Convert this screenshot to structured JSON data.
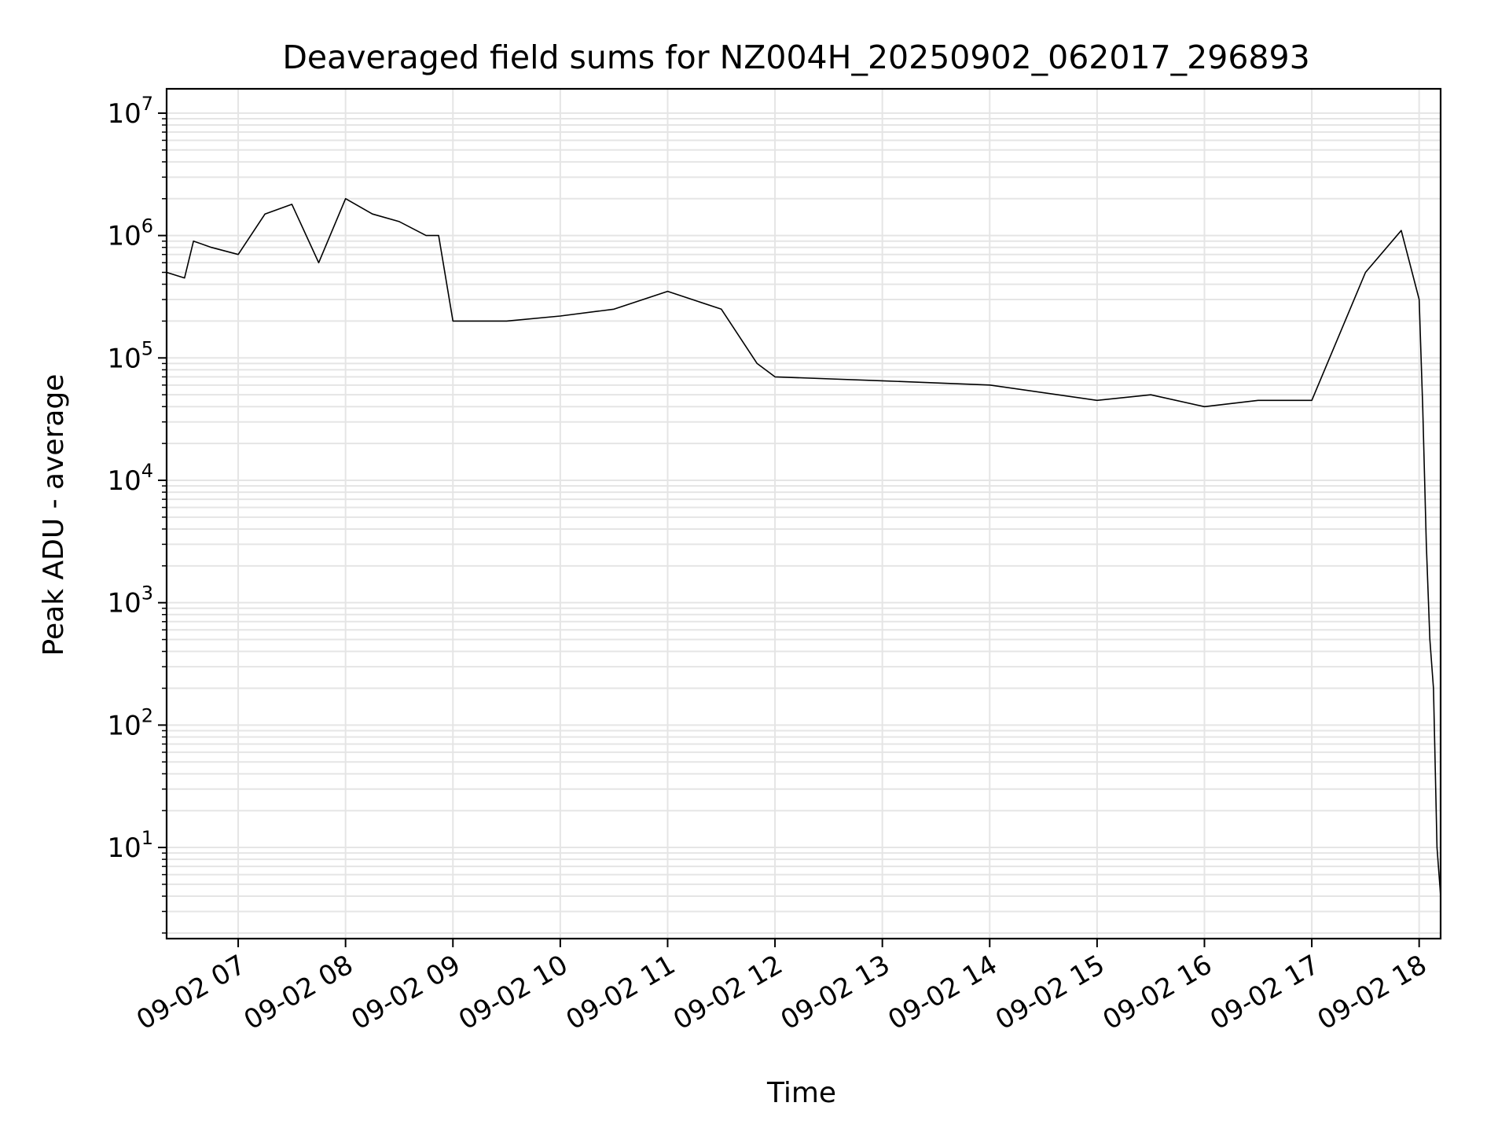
{
  "chart_data": {
    "type": "line",
    "title": "Deaveraged field sums for NZ004H_20250902_062017_296893",
    "xlabel": "Time",
    "ylabel": "Peak ADU - average",
    "yscale": "log",
    "xlim": [
      "2025-09-02 06:20",
      "2025-09-02 18:12"
    ],
    "ylim": [
      1.8,
      15800000
    ],
    "grid": true,
    "grid_minor": true,
    "line_color": "#000000",
    "grid_color": "#e5e5e5",
    "x_ticks": [
      {
        "value": "2025-09-02 07:00",
        "label": "09-02 07"
      },
      {
        "value": "2025-09-02 08:00",
        "label": "09-02 08"
      },
      {
        "value": "2025-09-02 09:00",
        "label": "09-02 09"
      },
      {
        "value": "2025-09-02 10:00",
        "label": "09-02 10"
      },
      {
        "value": "2025-09-02 11:00",
        "label": "09-02 11"
      },
      {
        "value": "2025-09-02 12:00",
        "label": "09-02 12"
      },
      {
        "value": "2025-09-02 13:00",
        "label": "09-02 13"
      },
      {
        "value": "2025-09-02 14:00",
        "label": "09-02 14"
      },
      {
        "value": "2025-09-02 15:00",
        "label": "09-02 15"
      },
      {
        "value": "2025-09-02 16:00",
        "label": "09-02 16"
      },
      {
        "value": "2025-09-02 17:00",
        "label": "09-02 17"
      },
      {
        "value": "2025-09-02 18:00",
        "label": "09-02 18"
      }
    ],
    "y_ticks": [
      {
        "value": 10,
        "base": "10",
        "exp": "1"
      },
      {
        "value": 100,
        "base": "10",
        "exp": "2"
      },
      {
        "value": 1000,
        "base": "10",
        "exp": "3"
      },
      {
        "value": 10000,
        "base": "10",
        "exp": "4"
      },
      {
        "value": 100000,
        "base": "10",
        "exp": "5"
      },
      {
        "value": 1000000,
        "base": "10",
        "exp": "6"
      },
      {
        "value": 10000000,
        "base": "10",
        "exp": "7"
      }
    ],
    "series": [
      {
        "points": [
          [
            "2025-09-02 06:20",
            500000
          ],
          [
            "2025-09-02 06:30",
            450000
          ],
          [
            "2025-09-02 06:35",
            900000
          ],
          [
            "2025-09-02 06:45",
            800000
          ],
          [
            "2025-09-02 07:00",
            700000
          ],
          [
            "2025-09-02 07:15",
            1500000
          ],
          [
            "2025-09-02 07:30",
            1800000
          ],
          [
            "2025-09-02 07:45",
            600000
          ],
          [
            "2025-09-02 08:00",
            2000000
          ],
          [
            "2025-09-02 08:15",
            1500000
          ],
          [
            "2025-09-02 08:30",
            1300000
          ],
          [
            "2025-09-02 08:45",
            1000000
          ],
          [
            "2025-09-02 08:52",
            1000000
          ],
          [
            "2025-09-02 09:00",
            200000
          ],
          [
            "2025-09-02 09:30",
            200000
          ],
          [
            "2025-09-02 10:00",
            220000
          ],
          [
            "2025-09-02 10:30",
            250000
          ],
          [
            "2025-09-02 11:00",
            350000
          ],
          [
            "2025-09-02 11:30",
            250000
          ],
          [
            "2025-09-02 11:50",
            90000
          ],
          [
            "2025-09-02 12:00",
            70000
          ],
          [
            "2025-09-02 13:00",
            65000
          ],
          [
            "2025-09-02 14:00",
            60000
          ],
          [
            "2025-09-02 15:00",
            45000
          ],
          [
            "2025-09-02 15:30",
            50000
          ],
          [
            "2025-09-02 16:00",
            40000
          ],
          [
            "2025-09-02 16:30",
            45000
          ],
          [
            "2025-09-02 17:00",
            45000
          ],
          [
            "2025-09-02 17:30",
            500000
          ],
          [
            "2025-09-02 17:50",
            1100000
          ],
          [
            "2025-09-02 18:00",
            300000
          ],
          [
            "2025-09-02 18:02",
            40000
          ],
          [
            "2025-09-02 18:04",
            3000
          ],
          [
            "2025-09-02 18:06",
            500
          ],
          [
            "2025-09-02 18:08",
            200
          ],
          [
            "2025-09-02 18:10",
            10
          ],
          [
            "2025-09-02 18:12",
            4
          ]
        ]
      }
    ]
  }
}
